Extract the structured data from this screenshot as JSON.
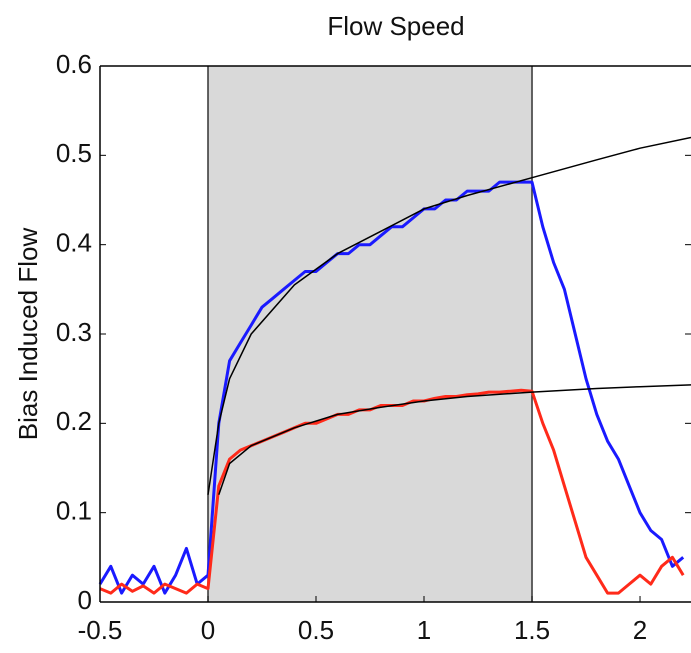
{
  "chart_data": {
    "type": "line",
    "title": "Flow Speed",
    "y_label": "Bias Induced Flow",
    "xlim": [
      -0.5,
      2.236
    ],
    "ylim": [
      0,
      0.6
    ],
    "xticks": [
      -0.5,
      0,
      0.5,
      1,
      1.5,
      2
    ],
    "yticks": [
      0,
      0.1,
      0.2,
      0.3,
      0.4,
      0.5,
      0.6
    ],
    "shaded_region": [
      0,
      1.5
    ],
    "shade_color": "#d9d9d9",
    "series": [
      {
        "color": "#1a1aff",
        "width": 3,
        "x": [
          -0.5,
          -0.45,
          -0.4,
          -0.35,
          -0.3,
          -0.25,
          -0.2,
          -0.15,
          -0.1,
          -0.05,
          0,
          0.05,
          0.1,
          0.15,
          0.2,
          0.25,
          0.3,
          0.35,
          0.4,
          0.45,
          0.5,
          0.55,
          0.6,
          0.65,
          0.7,
          0.75,
          0.8,
          0.85,
          0.9,
          0.95,
          1,
          1.05,
          1.1,
          1.15,
          1.2,
          1.25,
          1.3,
          1.35,
          1.4,
          1.45,
          1.5,
          1.55,
          1.6,
          1.65,
          1.7,
          1.75,
          1.8,
          1.85,
          1.9,
          1.95,
          2,
          2.05,
          2.1,
          2.15,
          2.2
        ],
        "values": [
          0.02,
          0.04,
          0.01,
          0.03,
          0.02,
          0.04,
          0.01,
          0.03,
          0.06,
          0.02,
          0.03,
          0.2,
          0.27,
          0.29,
          0.31,
          0.33,
          0.34,
          0.35,
          0.36,
          0.37,
          0.37,
          0.38,
          0.39,
          0.39,
          0.4,
          0.4,
          0.41,
          0.42,
          0.42,
          0.43,
          0.44,
          0.44,
          0.45,
          0.45,
          0.46,
          0.46,
          0.46,
          0.47,
          0.47,
          0.47,
          0.47,
          0.42,
          0.38,
          0.35,
          0.3,
          0.25,
          0.21,
          0.18,
          0.16,
          0.13,
          0.1,
          0.08,
          0.07,
          0.04,
          0.05
        ]
      },
      {
        "color": "#ff2a1a",
        "width": 3,
        "x": [
          -0.5,
          -0.45,
          -0.4,
          -0.35,
          -0.3,
          -0.25,
          -0.2,
          -0.15,
          -0.1,
          -0.05,
          0,
          0.05,
          0.1,
          0.15,
          0.2,
          0.25,
          0.3,
          0.35,
          0.4,
          0.45,
          0.5,
          0.55,
          0.6,
          0.65,
          0.7,
          0.75,
          0.8,
          0.85,
          0.9,
          0.95,
          1,
          1.05,
          1.1,
          1.15,
          1.2,
          1.25,
          1.3,
          1.35,
          1.4,
          1.45,
          1.5,
          1.55,
          1.6,
          1.65,
          1.7,
          1.75,
          1.8,
          1.85,
          1.9,
          1.95,
          2,
          2.05,
          2.1,
          2.15,
          2.2
        ],
        "values": [
          0.015,
          0.01,
          0.02,
          0.012,
          0.018,
          0.01,
          0.02,
          0.015,
          0.01,
          0.02,
          0.015,
          0.13,
          0.16,
          0.17,
          0.175,
          0.18,
          0.185,
          0.19,
          0.195,
          0.2,
          0.2,
          0.205,
          0.21,
          0.21,
          0.215,
          0.215,
          0.22,
          0.22,
          0.22,
          0.225,
          0.225,
          0.228,
          0.23,
          0.23,
          0.232,
          0.233,
          0.235,
          0.235,
          0.236,
          0.237,
          0.236,
          0.2,
          0.17,
          0.13,
          0.09,
          0.05,
          0.03,
          0.01,
          0.01,
          0.02,
          0.03,
          0.02,
          0.04,
          0.05,
          0.03
        ]
      },
      {
        "color": "#000000",
        "width": 1.5,
        "x": [
          0,
          0.05,
          0.1,
          0.2,
          0.4,
          0.6,
          0.8,
          1,
          1.2,
          1.5,
          1.8,
          2,
          2.236
        ],
        "values": [
          0.12,
          0.2,
          0.25,
          0.3,
          0.355,
          0.39,
          0.415,
          0.44,
          0.455,
          0.475,
          0.495,
          0.508,
          0.52
        ]
      },
      {
        "color": "#000000",
        "width": 1.5,
        "x": [
          0,
          0.05,
          0.1,
          0.2,
          0.4,
          0.6,
          0.8,
          1,
          1.2,
          1.5,
          1.8,
          2,
          2.236
        ],
        "values": [
          null,
          0.12,
          0.155,
          0.175,
          0.195,
          0.21,
          0.218,
          0.225,
          0.23,
          0.235,
          0.239,
          0.241,
          0.243
        ]
      }
    ]
  }
}
